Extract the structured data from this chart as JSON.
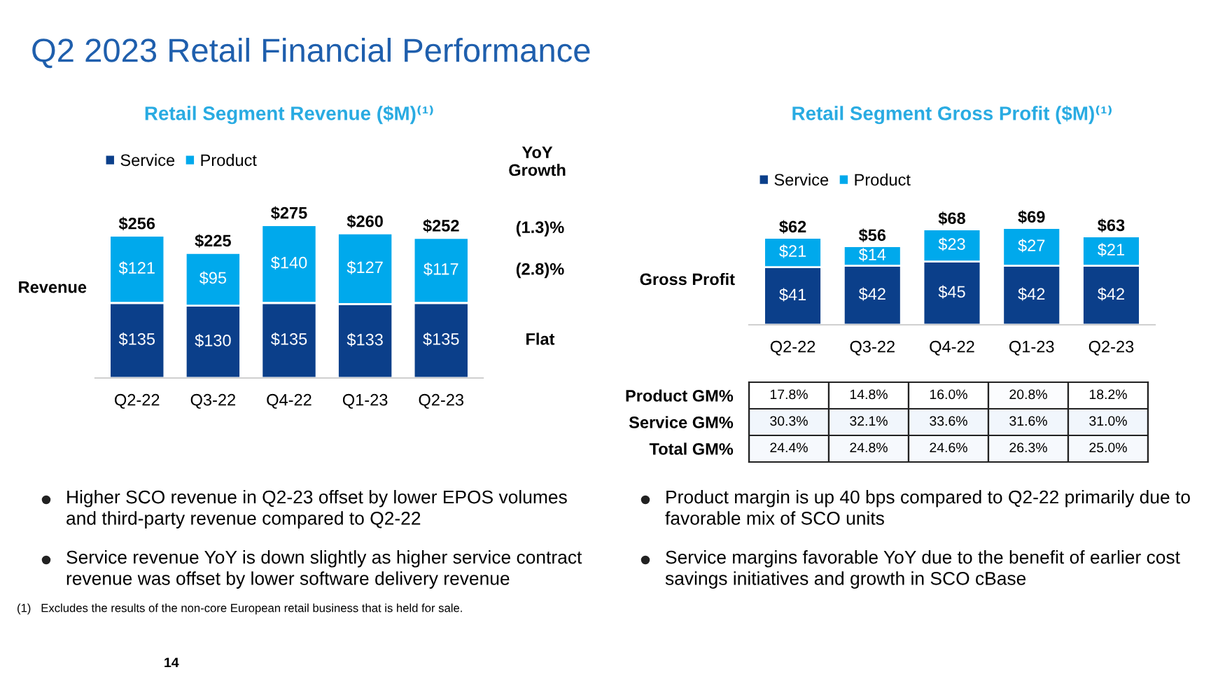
{
  "chart_data": [
    {
      "type": "bar",
      "title": "Retail Segment Revenue ($M)⁽¹⁾",
      "ylabel": "Revenue",
      "stacked": true,
      "legend": "top left",
      "categories": [
        "Q2-22",
        "Q3-22",
        "Q4-22",
        "Q1-23",
        "Q2-23"
      ],
      "series": [
        {
          "name": "Service",
          "color": "#0b3f8a",
          "values": [
            135,
            130,
            135,
            133,
            135
          ],
          "value_labels": [
            "$135",
            "$130",
            "$135",
            "$133",
            "$135"
          ]
        },
        {
          "name": "Product",
          "color": "#00a9ec",
          "values": [
            121,
            95,
            140,
            127,
            117
          ],
          "value_labels": [
            "$121",
            "$95",
            "$140",
            "$127",
            "$117"
          ]
        }
      ],
      "totals": [
        "$256",
        "$225",
        "$275",
        "$260",
        "$252"
      ],
      "annotations": [
        "YoY\nGrowth",
        "(1.3)%",
        "(2.8)%",
        "Flat"
      ]
    },
    {
      "type": "bar",
      "title": "Retail Segment Gross Profit ($M)⁽¹⁾",
      "ylabel": "Gross Profit",
      "stacked": true,
      "legend": "top left",
      "categories": [
        "Q2-22",
        "Q3-22",
        "Q4-22",
        "Q1-23",
        "Q2-23"
      ],
      "series": [
        {
          "name": "Service",
          "color": "#0b3f8a",
          "values": [
            41,
            42,
            45,
            42,
            42
          ],
          "value_labels": [
            "$41",
            "$42",
            "$45",
            "$42",
            "$42"
          ]
        },
        {
          "name": "Product",
          "color": "#00a9ec",
          "values": [
            21,
            14,
            23,
            27,
            21
          ],
          "value_labels": [
            "$21",
            "$14",
            "$23",
            "$27",
            "$21"
          ]
        }
      ],
      "totals": [
        "$62",
        "$56",
        "$68",
        "$69",
        "$63"
      ]
    },
    {
      "type": "heatmap",
      "categories": [
        null,
        null,
        null,
        null,
        null
      ],
      "y_categories": [
        "Product GM%",
        "Service GM%",
        "Total GM%"
      ],
      "cells": [
        [
          17.8,
          14.8,
          16.0,
          20.8,
          18.2
        ],
        [
          30.3,
          32.1,
          33.6,
          31.6,
          31.0
        ],
        [
          24.4,
          24.8,
          24.6,
          26.3,
          25.0
        ]
      ],
      "cell_labels": [
        [
          "17.8%",
          "14.8%",
          "16.0%",
          "20.8%",
          "18.2%"
        ],
        [
          "30.3%",
          "32.1%",
          "33.6%",
          "31.6%",
          "31.0%"
        ],
        [
          "24.4%",
          "24.8%",
          "24.6%",
          "26.3%",
          "25.0%"
        ]
      ]
    },
    {
      "type": "other",
      "title": "Q2 2023 Retail Financial Performance",
      "annotations": [
        "Higher SCO revenue in Q2-23 offset by lower EPOS volumes\nand third-party revenue compared to Q2-22",
        "Service revenue YoY is down slightly as higher service contract\nrevenue was offset by lower software delivery revenue",
        "Product margin is up 40 bps compared to Q2-22 primarily due to\nfavorable mix of SCO units",
        "Service margins favorable YoY due to the benefit of earlier cost\nsavings initiatives and growth in SCO cBase",
        "(1)   Excludes the results of the non-core European retail business that is held for sale.",
        "14"
      ]
    }
  ]
}
